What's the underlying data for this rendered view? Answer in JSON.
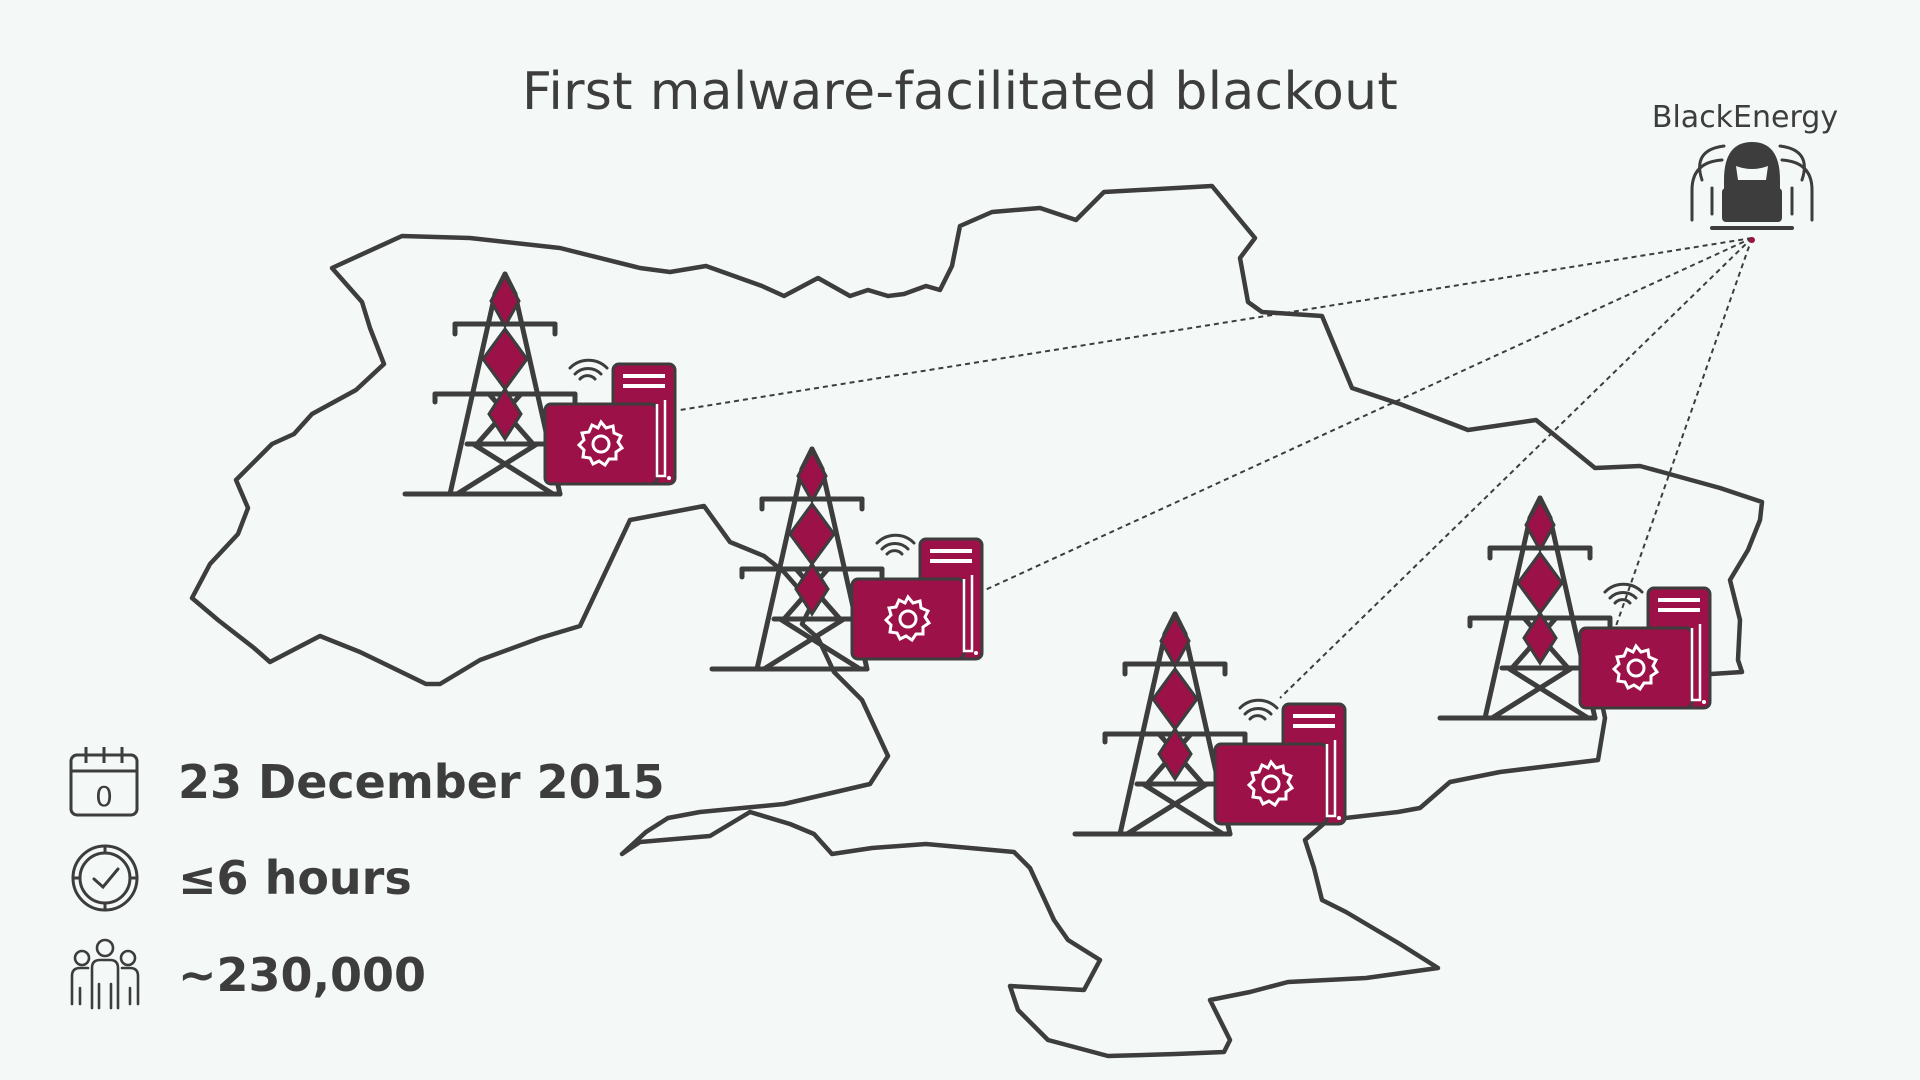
{
  "title": "First malware-facilitated blackout",
  "attacker": {
    "label": "BlackEnergy",
    "icon": "hacker-icon"
  },
  "colors": {
    "accent": "#9b1148",
    "outline": "#3d3d3d",
    "background": "#f4f9f8"
  },
  "substations": [
    {
      "name": "substation-1",
      "icon": "power-tower-icon"
    },
    {
      "name": "substation-2",
      "icon": "power-tower-icon"
    },
    {
      "name": "substation-3",
      "icon": "power-tower-icon"
    },
    {
      "name": "substation-4",
      "icon": "power-tower-icon"
    }
  ],
  "facts": [
    {
      "icon": "calendar-icon",
      "calendar_digit": "0",
      "text": "23 December 2015"
    },
    {
      "icon": "clock-icon",
      "text": "≤6 hours"
    },
    {
      "icon": "people-icon",
      "text": "~230,000"
    }
  ]
}
